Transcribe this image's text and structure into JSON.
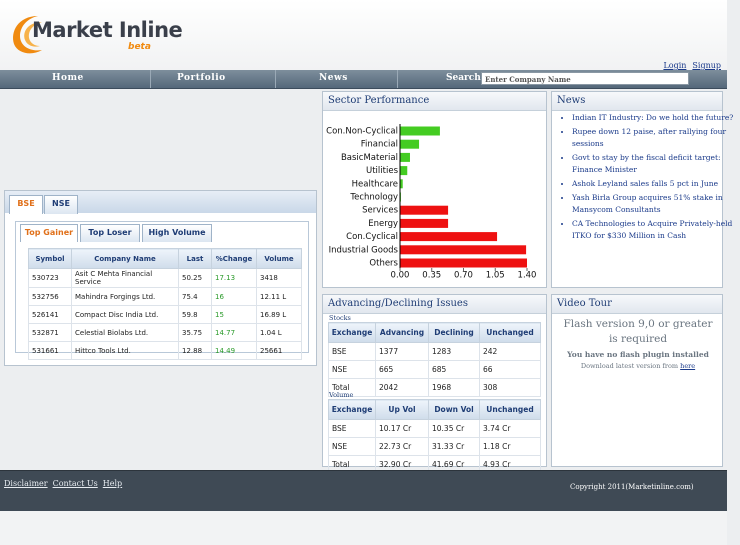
{
  "header": {
    "logo_text": "Market Inline",
    "logo_sub": "beta",
    "login": "Login",
    "signup": "Signup"
  },
  "nav": {
    "items": [
      "Home",
      "Portfolio",
      "News"
    ],
    "search_label": "Search:",
    "search_placeholder": "Enter Company Name"
  },
  "market_tabs": {
    "exchanges": [
      "BSE",
      "NSE"
    ],
    "views": [
      "Top Gainer",
      "Top Loser",
      "High Volume"
    ],
    "table": {
      "columns": [
        "Symbol",
        "Company Name",
        "Last",
        "%Change",
        "Volume"
      ],
      "rows": [
        [
          "530723",
          "Asit C Mehta Financial Service",
          "50.25",
          "17.13",
          "3418"
        ],
        [
          "532756",
          "Mahindra Forgings Ltd.",
          "75.4",
          "16",
          "12.11 L"
        ],
        [
          "526141",
          "Compact Disc India Ltd.",
          "59.8",
          "15",
          "16.89 L"
        ],
        [
          "532871",
          "Celestial Biolabs Ltd.",
          "35.75",
          "14.77",
          "1.04 L"
        ],
        [
          "531661",
          "Hittco Tools Ltd.",
          "12.88",
          "14.49",
          "25661"
        ]
      ]
    }
  },
  "chart_data": {
    "type": "bar",
    "orientation": "horizontal",
    "title": "Sector Performance",
    "categories": [
      "Con.Non-Cyclical",
      "Financial",
      "BasicMaterial",
      "Utilities",
      "Healthcare",
      "Technology",
      "Services",
      "Energy",
      "Con.Cyclical",
      "Industrial Goods",
      "Others"
    ],
    "values": [
      0.44,
      0.21,
      0.11,
      0.08,
      0.03,
      0.01,
      0.53,
      0.53,
      1.07,
      1.39,
      1.4
    ],
    "colors": [
      "#44cc22",
      "#44cc22",
      "#44cc22",
      "#44cc22",
      "#44cc22",
      "#44cc22",
      "#ee1111",
      "#ee1111",
      "#ee1111",
      "#ee1111",
      "#ee1111"
    ],
    "xlim": [
      0,
      1.4
    ],
    "xticks": [
      {
        "value": 0,
        "label": "0.00"
      },
      {
        "value": 0.35,
        "label": "0.35"
      },
      {
        "value": 0.7,
        "label": "0.70"
      },
      {
        "value": 1.05,
        "label": "1.05"
      },
      {
        "value": 1.4,
        "label": "1.40"
      }
    ]
  },
  "news": {
    "title": "News",
    "items": [
      "Indian IT Industry: Do we hold the future?",
      "Rupee down 12 paise, after rallying four sessions",
      "Govt to stay by the fiscal deficit target: Finance Minister",
      "Ashok Leyland sales falls 5 pct in June",
      "Yash Birla Group acquires 51% stake in Mansycom Consultants",
      "CA Technologies to Acquire Privately-held ITKO for $330 Million in Cash"
    ]
  },
  "adv_dec": {
    "title": "Advancing/Declining Issues",
    "stocks": {
      "caption": "Stocks",
      "columns": [
        "Exchange",
        "Advancing",
        "Declining",
        "Unchanged"
      ],
      "rows": [
        [
          "BSE",
          "1377",
          "1283",
          "242"
        ],
        [
          "NSE",
          "665",
          "685",
          "66"
        ],
        [
          "Total",
          "2042",
          "1968",
          "308"
        ]
      ]
    },
    "volume": {
      "caption": "Volume",
      "columns": [
        "Exchange",
        "Up Vol",
        "Down Vol",
        "Unchanged"
      ],
      "rows": [
        [
          "BSE",
          "10.17 Cr",
          "10.35 Cr",
          "3.74 Cr"
        ],
        [
          "NSE",
          "22.73 Cr",
          "31.33 Cr",
          "1.18 Cr"
        ],
        [
          "Total",
          "32.90 Cr",
          "41.69 Cr",
          "4.93 Cr"
        ]
      ]
    }
  },
  "video": {
    "title": "Video Tour",
    "message": "Flash version 9,0 or greater is required",
    "no_plugin": "You have no flash plugin installed",
    "download": "Download latest version from",
    "here": "here"
  },
  "footer": {
    "links": [
      "Disclaimer",
      "Contact Us",
      "Help"
    ],
    "copyright": "Copyright 2011(Marketinline.com)"
  }
}
